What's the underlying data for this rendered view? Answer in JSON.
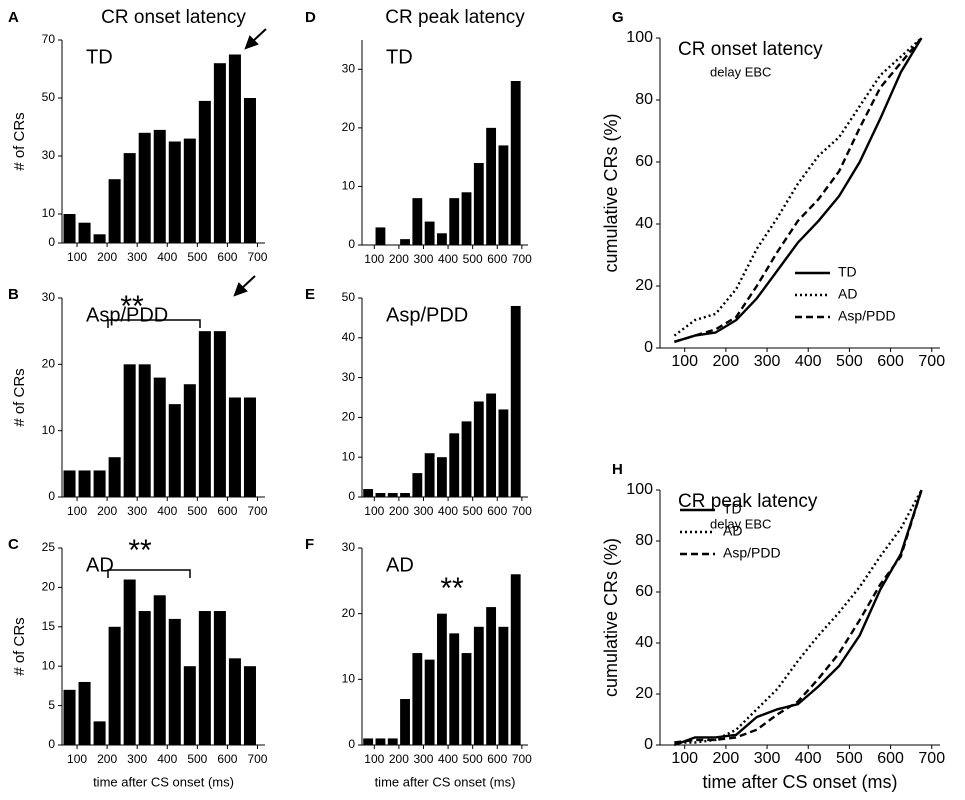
{
  "chart_data": [
    {
      "type": "bar",
      "panel": "A",
      "title": "CR onset latency",
      "label": "TD",
      "ylabel": "# of CRs",
      "x": [
        75,
        125,
        175,
        225,
        275,
        325,
        375,
        425,
        475,
        525,
        575,
        625,
        675
      ],
      "values": [
        10,
        7,
        3,
        22,
        31,
        38,
        39,
        35,
        36,
        49,
        62,
        65,
        50
      ],
      "color": "#000000",
      "xlim": [
        50,
        725
      ],
      "xticks": [
        100,
        200,
        300,
        400,
        500,
        600,
        700
      ],
      "ylim": [
        0,
        70
      ],
      "yticks": [
        0,
        10,
        30,
        50,
        70
      ]
    },
    {
      "type": "bar",
      "panel": "B",
      "label": "Asp/PDD",
      "ylabel": "# of CRs",
      "annotation": "**",
      "x": [
        75,
        125,
        175,
        225,
        275,
        325,
        375,
        425,
        475,
        525,
        575,
        625,
        675
      ],
      "values": [
        4,
        4,
        4,
        6,
        20,
        20,
        18,
        14,
        17,
        25,
        25,
        15,
        15
      ],
      "color": "#000000",
      "xlim": [
        50,
        725
      ],
      "xticks": [
        100,
        200,
        300,
        400,
        500,
        600,
        700
      ],
      "ylim": [
        0,
        30
      ],
      "yticks": [
        0,
        10,
        20,
        30
      ]
    },
    {
      "type": "bar",
      "panel": "C",
      "label": "AD",
      "ylabel": "# of CRs",
      "xlabel": "time after CS onset (ms)",
      "annotation": "**",
      "x": [
        75,
        125,
        175,
        225,
        275,
        325,
        375,
        425,
        475,
        525,
        575,
        625,
        675
      ],
      "values": [
        7,
        8,
        3,
        15,
        21,
        17,
        19,
        16,
        10,
        17,
        17,
        11,
        10
      ],
      "color": "#000000",
      "xlim": [
        50,
        725
      ],
      "xticks": [
        100,
        200,
        300,
        400,
        500,
        600,
        700
      ],
      "ylim": [
        0,
        25
      ],
      "yticks": [
        0,
        5,
        10,
        15,
        20,
        25
      ]
    },
    {
      "type": "bar",
      "panel": "D",
      "title": "CR peak latency",
      "label": "TD",
      "x": [
        75,
        125,
        175,
        225,
        275,
        325,
        375,
        425,
        475,
        525,
        575,
        625,
        675
      ],
      "values": [
        0,
        3,
        0,
        1,
        8,
        4,
        2,
        8,
        9,
        14,
        20,
        17,
        28
      ],
      "color": "#000000",
      "xlim": [
        50,
        725
      ],
      "xticks": [
        100,
        200,
        300,
        400,
        500,
        600,
        700
      ],
      "ylim": [
        0,
        35
      ],
      "yticks": [
        0,
        10,
        20,
        30
      ]
    },
    {
      "type": "bar",
      "panel": "E",
      "label": "Asp/PDD",
      "x": [
        75,
        125,
        175,
        225,
        275,
        325,
        375,
        425,
        475,
        525,
        575,
        625,
        675
      ],
      "values": [
        2,
        1,
        1,
        1,
        6,
        11,
        10,
        16,
        19,
        24,
        26,
        22,
        48
      ],
      "color": "#000000",
      "xlim": [
        50,
        725
      ],
      "xticks": [
        100,
        200,
        300,
        400,
        500,
        600,
        700
      ],
      "ylim": [
        0,
        50
      ],
      "yticks": [
        0,
        10,
        20,
        30,
        40,
        50
      ]
    },
    {
      "type": "bar",
      "panel": "F",
      "label": "AD",
      "xlabel": "time after CS onset (ms)",
      "annotation": "**",
      "x": [
        75,
        125,
        175,
        225,
        275,
        325,
        375,
        425,
        475,
        525,
        575,
        625,
        675
      ],
      "values": [
        1,
        1,
        1,
        7,
        14,
        13,
        20,
        17,
        14,
        18,
        21,
        18,
        26
      ],
      "color": "#000000",
      "xlim": [
        50,
        725
      ],
      "xticks": [
        100,
        200,
        300,
        400,
        500,
        600,
        700
      ],
      "ylim": [
        0,
        30
      ],
      "yticks": [
        0,
        10,
        20,
        30
      ]
    },
    {
      "type": "line",
      "panel": "G",
      "title": "CR onset latency",
      "subtitle": "delay EBC",
      "ylabel": "cumulative CRs (%)",
      "x": [
        75,
        125,
        175,
        225,
        275,
        325,
        375,
        425,
        475,
        525,
        575,
        625,
        675
      ],
      "series": [
        {
          "name": "TD",
          "color": "#000000",
          "style": "solid",
          "values": [
            2,
            4,
            5,
            9,
            16,
            25,
            34,
            41,
            49,
            60,
            74,
            89,
            100
          ]
        },
        {
          "name": "AD",
          "color": "#000000",
          "style": "dotted",
          "values": [
            4,
            9,
            11,
            19,
            32,
            42,
            53,
            62,
            68,
            78,
            88,
            94,
            100
          ]
        },
        {
          "name": "Asp/PDD",
          "color": "#000000",
          "style": "dashed",
          "values": [
            2,
            4,
            6,
            10,
            20,
            31,
            41,
            48,
            57,
            71,
            84,
            92,
            100
          ]
        }
      ],
      "legend": "lower right",
      "xlim": [
        40,
        720
      ],
      "xticks": [
        100,
        200,
        300,
        400,
        500,
        600,
        700
      ],
      "ylim": [
        0,
        100
      ],
      "yticks": [
        0,
        20,
        40,
        60,
        80,
        100
      ]
    },
    {
      "type": "line",
      "panel": "H",
      "title": "CR peak latency",
      "subtitle": "delay EBC",
      "ylabel": "cumulative CRs (%)",
      "xlabel": "time after CS onset (ms)",
      "x": [
        75,
        125,
        175,
        225,
        275,
        325,
        375,
        425,
        475,
        525,
        575,
        625,
        675
      ],
      "series": [
        {
          "name": "TD",
          "color": "#000000",
          "style": "solid",
          "values": [
            0,
            3,
            3,
            4,
            11,
            14,
            16,
            23,
            31,
            43,
            61,
            75,
            100
          ]
        },
        {
          "name": "AD",
          "color": "#000000",
          "style": "dotted",
          "values": [
            1,
            1,
            2,
            6,
            14,
            22,
            33,
            43,
            52,
            62,
            74,
            85,
            100
          ]
        },
        {
          "name": "Asp/PDD",
          "color": "#000000",
          "style": "dashed",
          "values": [
            1,
            2,
            2,
            3,
            6,
            12,
            17,
            26,
            36,
            49,
            63,
            74,
            100
          ]
        }
      ],
      "legend": "upper left",
      "xlim": [
        40,
        720
      ],
      "xticks": [
        100,
        200,
        300,
        400,
        500,
        600,
        700
      ],
      "ylim": [
        0,
        100
      ],
      "yticks": [
        0,
        20,
        40,
        60,
        80,
        100
      ]
    }
  ]
}
